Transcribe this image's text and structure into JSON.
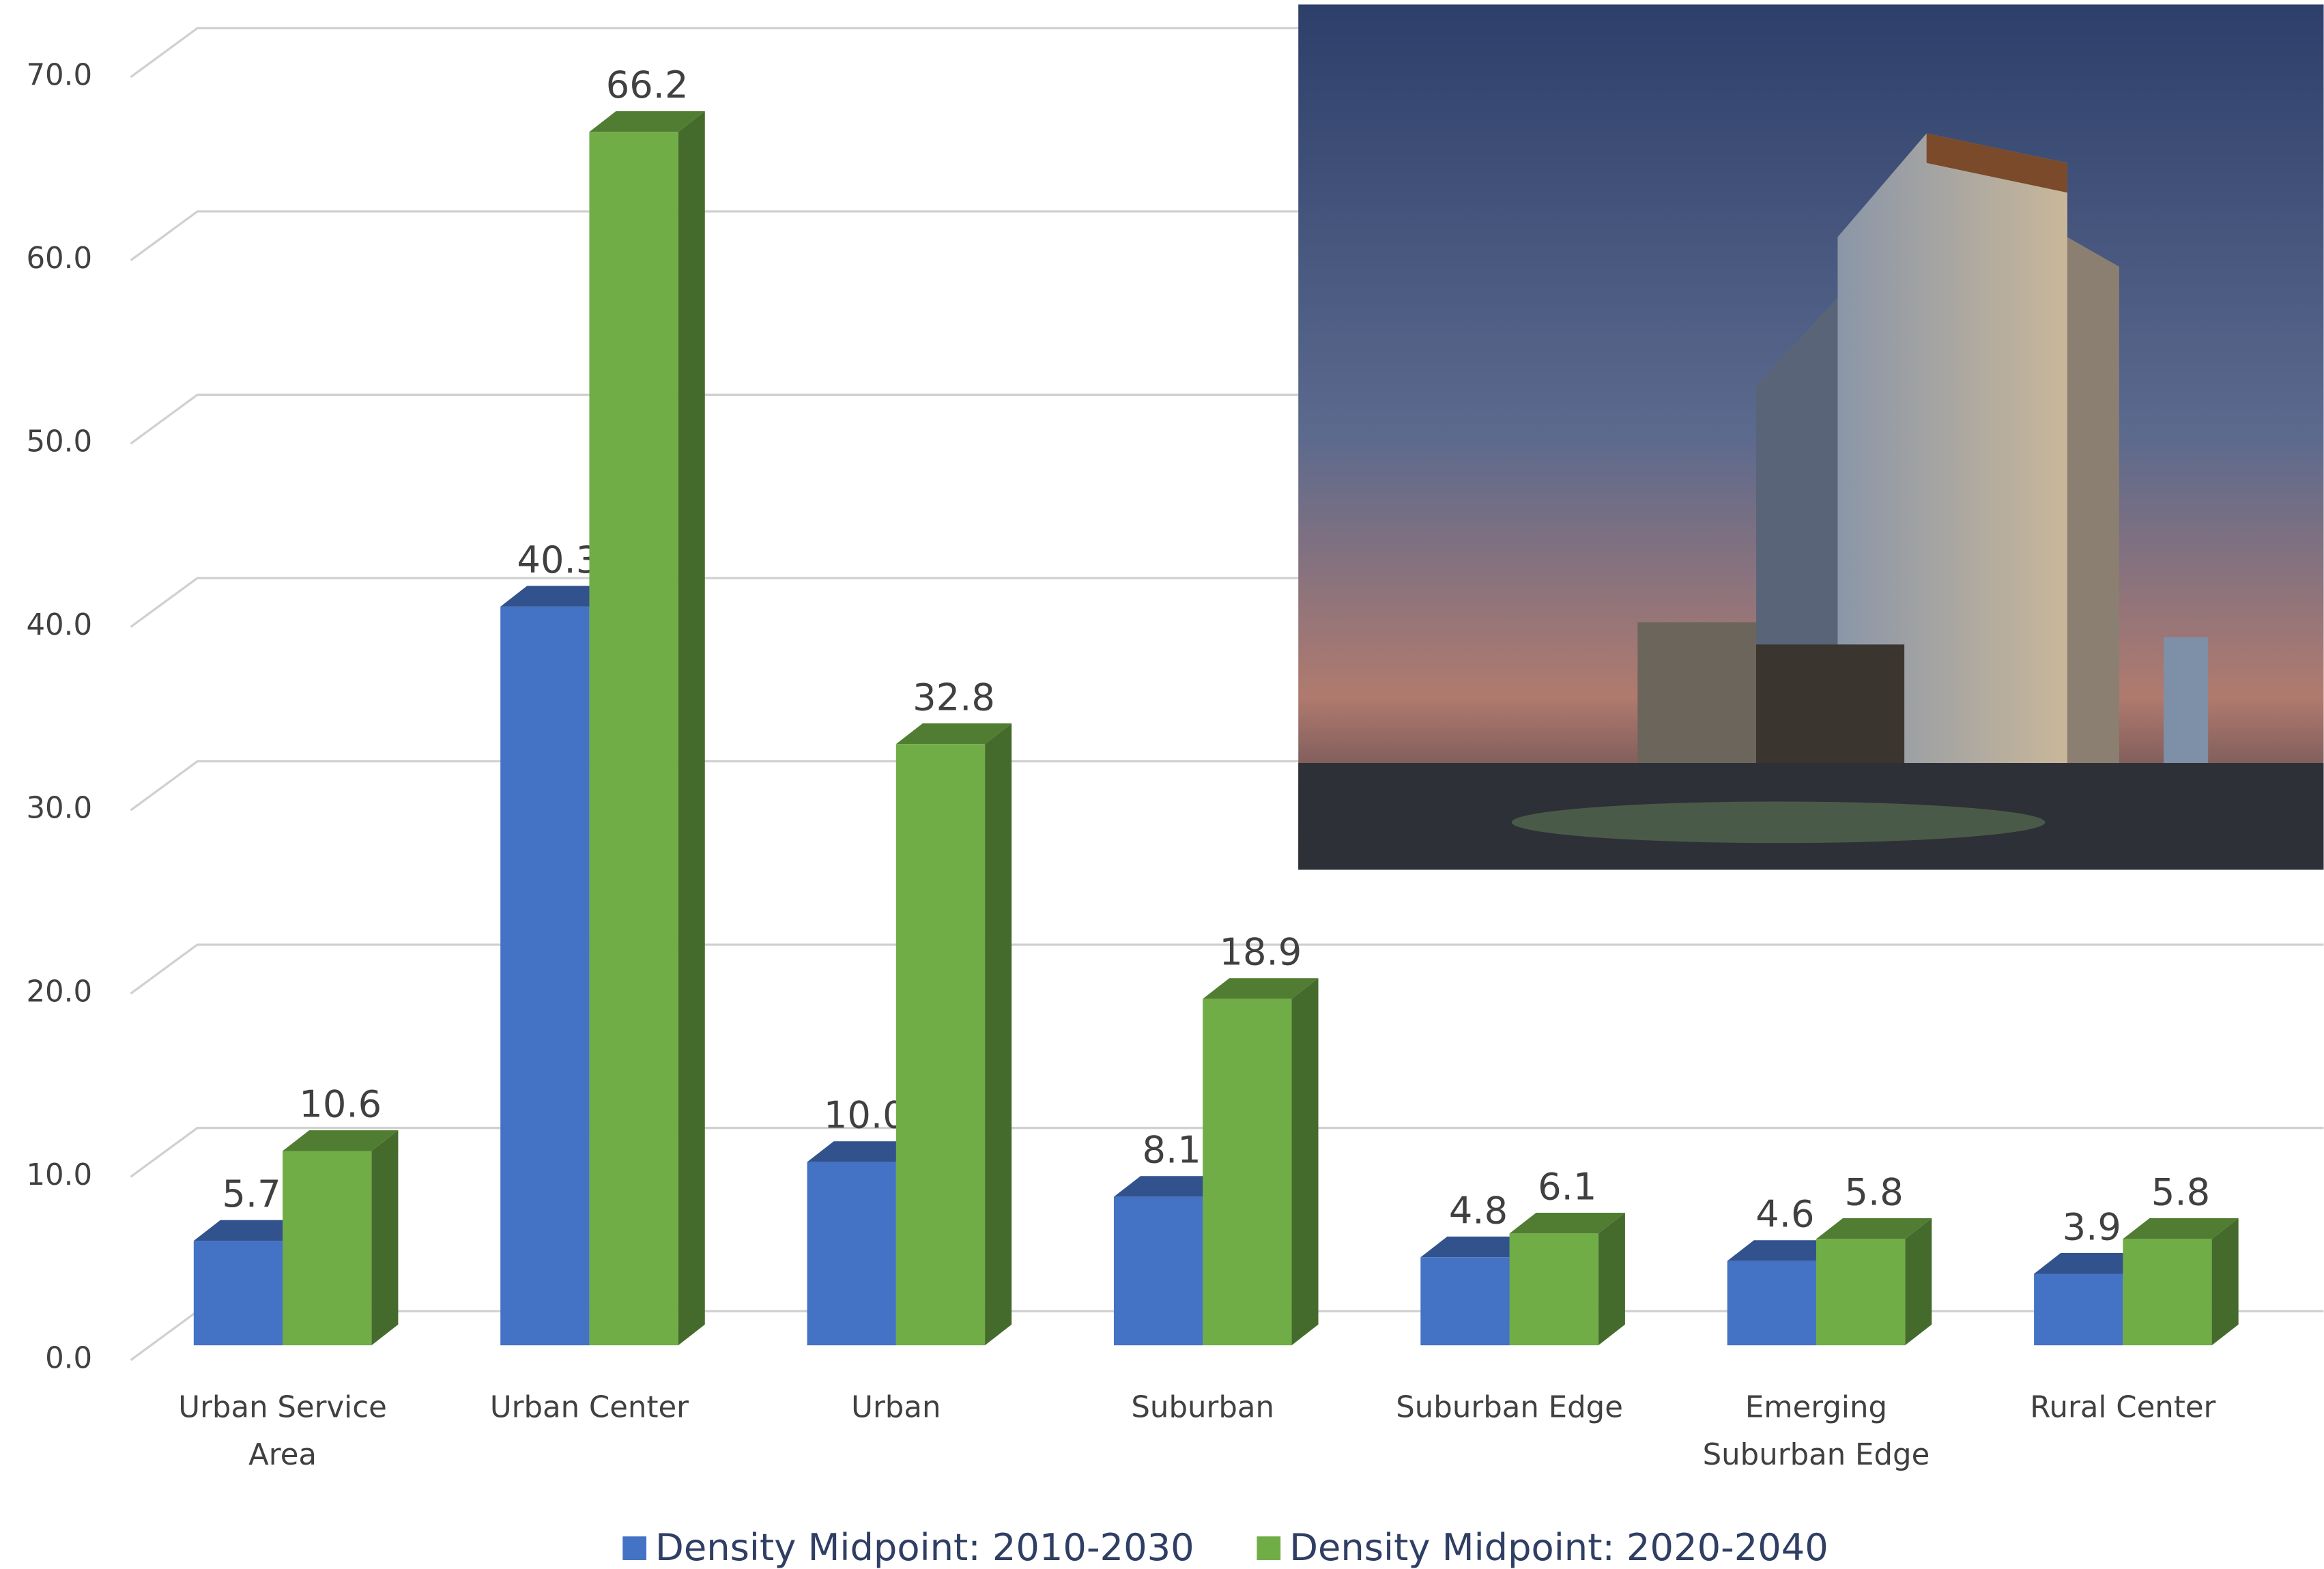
{
  "chart_data": {
    "type": "bar3d",
    "categories": [
      "Urban Service Area",
      "Urban Center",
      "Urban",
      "Suburban",
      "Suburban Edge",
      "Emerging Suburban Edge",
      "Rural Center"
    ],
    "series": [
      {
        "name": "Density Midpoint: 2010-2030",
        "color": "#4472c4",
        "values": [
          5.7,
          40.3,
          10.0,
          8.1,
          4.8,
          4.6,
          3.9
        ],
        "value_labels": [
          "5.7",
          "40.3",
          "10.0",
          "8.1",
          "4.8",
          "4.6",
          "3.9"
        ]
      },
      {
        "name": "Density Midpoint: 2020-2040",
        "color": "#70ad47",
        "values": [
          10.6,
          66.2,
          32.8,
          18.9,
          6.1,
          5.8,
          5.8
        ]
      }
    ],
    "ylim": [
      0,
      70
    ],
    "yticks": [
      {
        "value": 0,
        "label": "0.0"
      },
      {
        "value": 10,
        "label": "10.0"
      },
      {
        "value": 20,
        "label": "20.0"
      },
      {
        "value": 30,
        "label": "30.0"
      },
      {
        "value": 40,
        "label": "40.0"
      },
      {
        "value": 50,
        "label": "50.0"
      },
      {
        "value": 60,
        "label": "60.0"
      },
      {
        "value": 70,
        "label": "70.0"
      }
    ],
    "grid": true,
    "legend": "bottom"
  }
}
